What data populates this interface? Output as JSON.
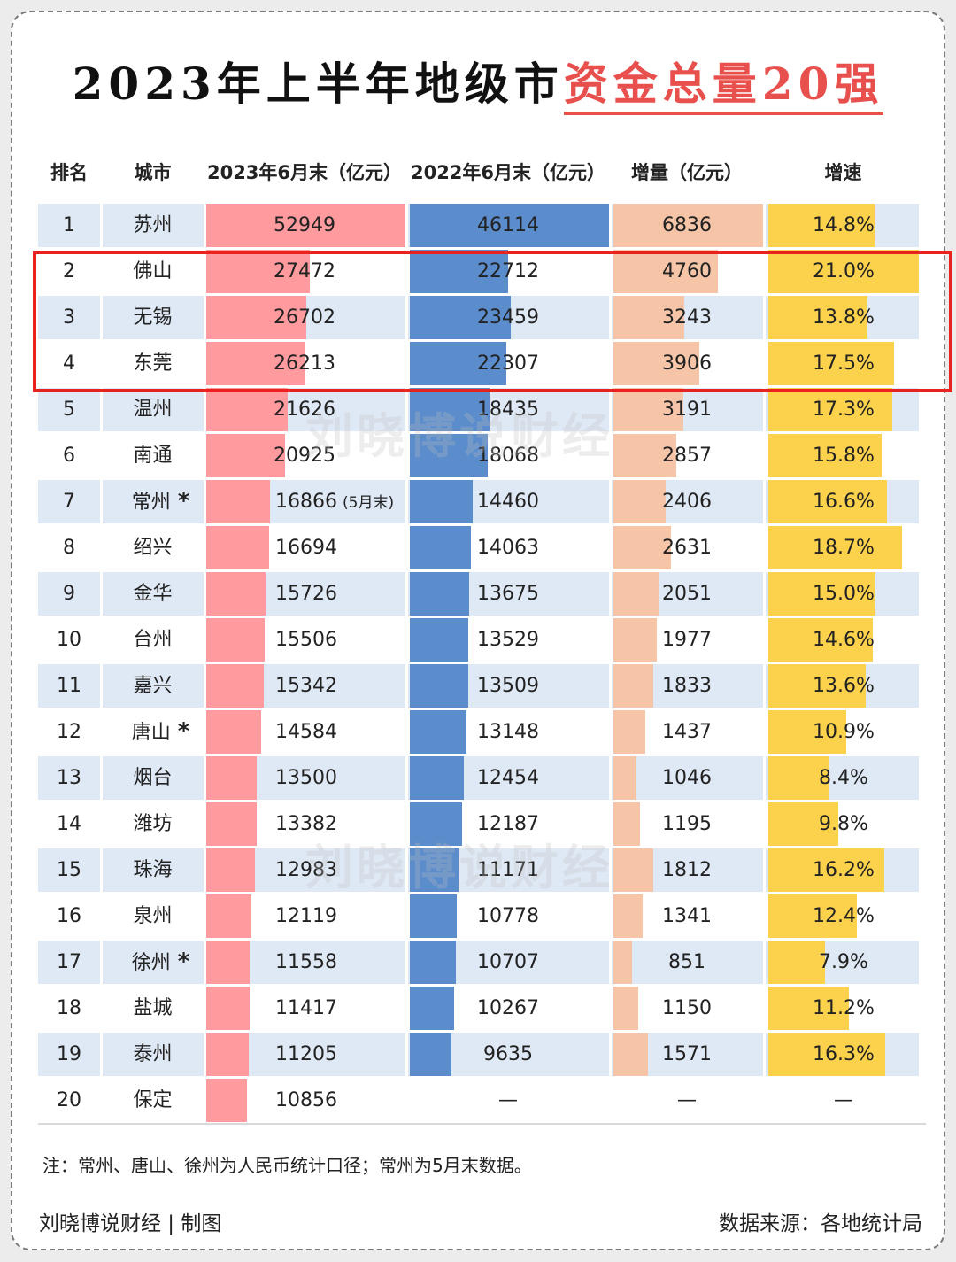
{
  "title_part1": "2023年上半年地级市",
  "title_part2": "资金总量20强",
  "colors": {
    "col2023": "#ff9a9e",
    "col2022": "#5b8ccc",
    "increase": "#f6c5a8",
    "growth": "#fcd24d",
    "stripe": "#dfe9f5",
    "highlight": "#e8231f"
  },
  "chart_data": {
    "type": "table",
    "headers": [
      "排名",
      "城市",
      "2023年6月末（亿元）",
      "2022年6月末（亿元）",
      "增量（亿元）",
      "增速"
    ],
    "rows": [
      {
        "rank": "1",
        "city": "苏州",
        "star": "",
        "v2023": 52949,
        "v2023_label": "52949",
        "v2023_note": "",
        "v2022": 46114,
        "v2022_label": "46114",
        "inc": 6836,
        "inc_label": "6836",
        "growth": 14.8,
        "growth_label": "14.8%"
      },
      {
        "rank": "2",
        "city": "佛山",
        "star": "",
        "v2023": 27472,
        "v2023_label": "27472",
        "v2023_note": "",
        "v2022": 22712,
        "v2022_label": "22712",
        "inc": 4760,
        "inc_label": "4760",
        "growth": 21.0,
        "growth_label": "21.0%"
      },
      {
        "rank": "3",
        "city": "无锡",
        "star": "",
        "v2023": 26702,
        "v2023_label": "26702",
        "v2023_note": "",
        "v2022": 23459,
        "v2022_label": "23459",
        "inc": 3243,
        "inc_label": "3243",
        "growth": 13.8,
        "growth_label": "13.8%"
      },
      {
        "rank": "4",
        "city": "东莞",
        "star": "",
        "v2023": 26213,
        "v2023_label": "26213",
        "v2023_note": "",
        "v2022": 22307,
        "v2022_label": "22307",
        "inc": 3906,
        "inc_label": "3906",
        "growth": 17.5,
        "growth_label": "17.5%"
      },
      {
        "rank": "5",
        "city": "温州",
        "star": "",
        "v2023": 21626,
        "v2023_label": "21626",
        "v2023_note": "",
        "v2022": 18435,
        "v2022_label": "18435",
        "inc": 3191,
        "inc_label": "3191",
        "growth": 17.3,
        "growth_label": "17.3%"
      },
      {
        "rank": "6",
        "city": "南通",
        "star": "",
        "v2023": 20925,
        "v2023_label": "20925",
        "v2023_note": "",
        "v2022": 18068,
        "v2022_label": "18068",
        "inc": 2857,
        "inc_label": "2857",
        "growth": 15.8,
        "growth_label": "15.8%"
      },
      {
        "rank": "7",
        "city": "常州",
        "star": "*",
        "v2023": 16866,
        "v2023_label": "16866",
        "v2023_note": "(5月末)",
        "v2022": 14460,
        "v2022_label": "14460",
        "inc": 2406,
        "inc_label": "2406",
        "growth": 16.6,
        "growth_label": "16.6%"
      },
      {
        "rank": "8",
        "city": "绍兴",
        "star": "",
        "v2023": 16694,
        "v2023_label": "16694",
        "v2023_note": "",
        "v2022": 14063,
        "v2022_label": "14063",
        "inc": 2631,
        "inc_label": "2631",
        "growth": 18.7,
        "growth_label": "18.7%"
      },
      {
        "rank": "9",
        "city": "金华",
        "star": "",
        "v2023": 15726,
        "v2023_label": "15726",
        "v2023_note": "",
        "v2022": 13675,
        "v2022_label": "13675",
        "inc": 2051,
        "inc_label": "2051",
        "growth": 15.0,
        "growth_label": "15.0%"
      },
      {
        "rank": "10",
        "city": "台州",
        "star": "",
        "v2023": 15506,
        "v2023_label": "15506",
        "v2023_note": "",
        "v2022": 13529,
        "v2022_label": "13529",
        "inc": 1977,
        "inc_label": "1977",
        "growth": 14.6,
        "growth_label": "14.6%"
      },
      {
        "rank": "11",
        "city": "嘉兴",
        "star": "",
        "v2023": 15342,
        "v2023_label": "15342",
        "v2023_note": "",
        "v2022": 13509,
        "v2022_label": "13509",
        "inc": 1833,
        "inc_label": "1833",
        "growth": 13.6,
        "growth_label": "13.6%"
      },
      {
        "rank": "12",
        "city": "唐山",
        "star": "*",
        "v2023": 14584,
        "v2023_label": "14584",
        "v2023_note": "",
        "v2022": 13148,
        "v2022_label": "13148",
        "inc": 1437,
        "inc_label": "1437",
        "growth": 10.9,
        "growth_label": "10.9%"
      },
      {
        "rank": "13",
        "city": "烟台",
        "star": "",
        "v2023": 13500,
        "v2023_label": "13500",
        "v2023_note": "",
        "v2022": 12454,
        "v2022_label": "12454",
        "inc": 1046,
        "inc_label": "1046",
        "growth": 8.4,
        "growth_label": "8.4%"
      },
      {
        "rank": "14",
        "city": "潍坊",
        "star": "",
        "v2023": 13382,
        "v2023_label": "13382",
        "v2023_note": "",
        "v2022": 12187,
        "v2022_label": "12187",
        "inc": 1195,
        "inc_label": "1195",
        "growth": 9.8,
        "growth_label": "9.8%"
      },
      {
        "rank": "15",
        "city": "珠海",
        "star": "",
        "v2023": 12983,
        "v2023_label": "12983",
        "v2023_note": "",
        "v2022": 11171,
        "v2022_label": "11171",
        "inc": 1812,
        "inc_label": "1812",
        "growth": 16.2,
        "growth_label": "16.2%"
      },
      {
        "rank": "16",
        "city": "泉州",
        "star": "",
        "v2023": 12119,
        "v2023_label": "12119",
        "v2023_note": "",
        "v2022": 10778,
        "v2022_label": "10778",
        "inc": 1341,
        "inc_label": "1341",
        "growth": 12.4,
        "growth_label": "12.4%"
      },
      {
        "rank": "17",
        "city": "徐州",
        "star": "*",
        "v2023": 11558,
        "v2023_label": "11558",
        "v2023_note": "",
        "v2022": 10707,
        "v2022_label": "10707",
        "inc": 851,
        "inc_label": "851",
        "growth": 7.9,
        "growth_label": "7.9%"
      },
      {
        "rank": "18",
        "city": "盐城",
        "star": "",
        "v2023": 11417,
        "v2023_label": "11417",
        "v2023_note": "",
        "v2022": 10267,
        "v2022_label": "10267",
        "inc": 1150,
        "inc_label": "1150",
        "growth": 11.2,
        "growth_label": "11.2%"
      },
      {
        "rank": "19",
        "city": "泰州",
        "star": "",
        "v2023": 11205,
        "v2023_label": "11205",
        "v2023_note": "",
        "v2022": 9635,
        "v2022_label": "9635",
        "inc": 1571,
        "inc_label": "1571",
        "growth": 16.3,
        "growth_label": "16.3%"
      },
      {
        "rank": "20",
        "city": "保定",
        "star": "",
        "v2023": 10856,
        "v2023_label": "10856",
        "v2023_note": "",
        "v2022": null,
        "v2022_label": "—",
        "inc": null,
        "inc_label": "—",
        "growth": null,
        "growth_label": "—"
      }
    ],
    "highlighted_ranks": [
      "2",
      "3",
      "4"
    ]
  },
  "watermark": "刘晓博说财经",
  "note": "注：常州、唐山、徐州为人民币统计口径；常州为5月末数据。",
  "footer_left": "刘晓博说财经 | 制图",
  "footer_right": "数据来源：各地统计局"
}
